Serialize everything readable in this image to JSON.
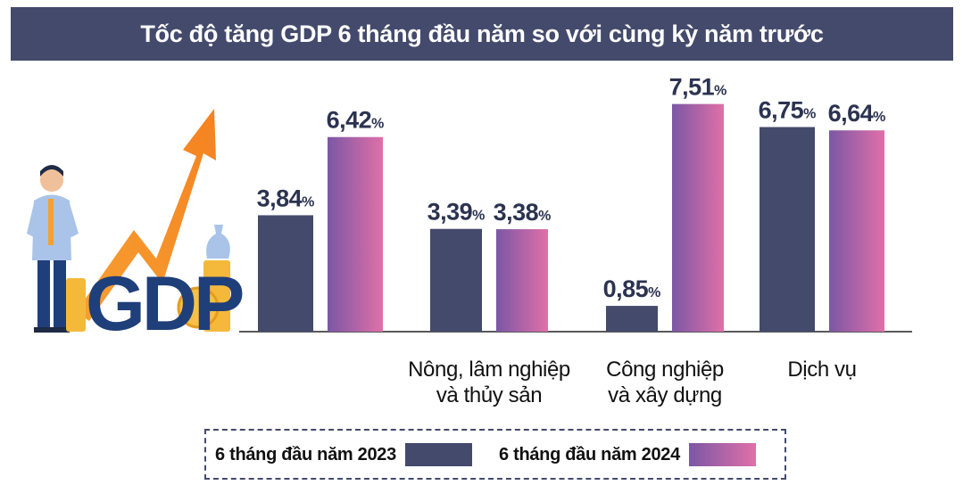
{
  "chart_data": {
    "type": "bar",
    "title": "Tốc độ tăng GDP 6 tháng đầu năm so với cùng kỳ năm trước",
    "categories": [
      "",
      "Nông, lâm nghiệp và thủy sản",
      "Công nghiệp và xây dựng",
      "Dịch vụ"
    ],
    "category_lines": [
      [],
      [
        "Nông, lâm nghiệp",
        "và thủy sản"
      ],
      [
        "Công nghiệp",
        "và xây dựng"
      ],
      [
        "Dịch vụ"
      ]
    ],
    "series": [
      {
        "name": "6 tháng đầu năm 2023",
        "values": [
          3.84,
          3.39,
          0.85,
          6.75
        ],
        "labels": [
          "3,84",
          "3,39",
          "0,85",
          "6,75"
        ],
        "color": "#444a6c"
      },
      {
        "name": "6 tháng đầu năm 2024",
        "values": [
          6.42,
          3.38,
          7.51,
          6.64
        ],
        "labels": [
          "6,42",
          "3,38",
          "7,51",
          "6,64"
        ],
        "color_start": "#7b57a6",
        "color_end": "#e070a8"
      }
    ],
    "unit": "%",
    "ylim": [
      0,
      8
    ],
    "grid": false,
    "legend_position": "bottom"
  },
  "illustration": {
    "logo_text": "GDP",
    "icons": [
      "businessman-icon",
      "trend-arrow-icon",
      "coin-stack-icon",
      "money-bag-icon"
    ]
  }
}
